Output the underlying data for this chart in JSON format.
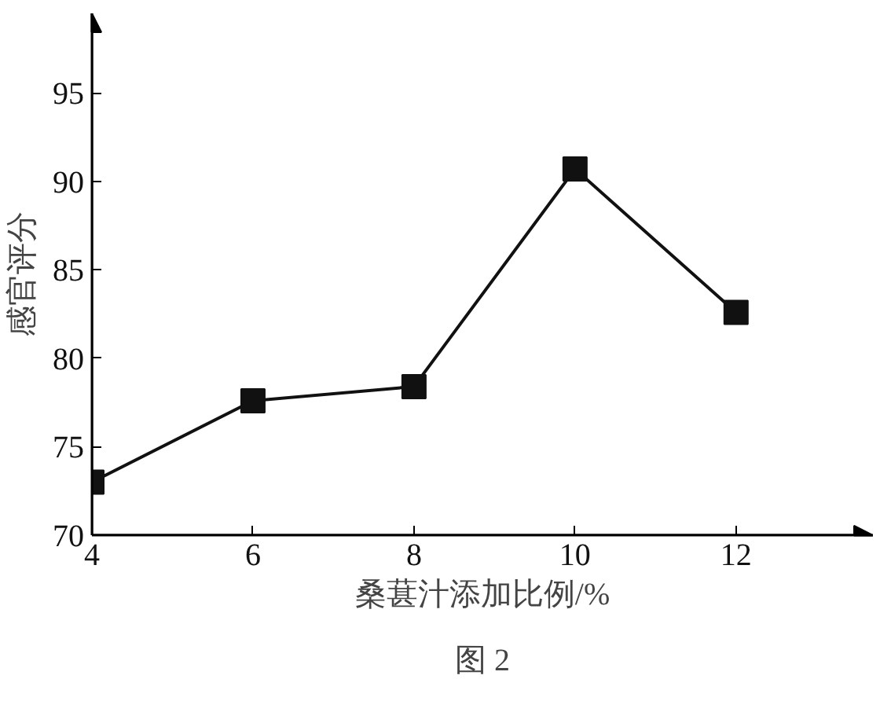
{
  "chart_data": {
    "type": "line",
    "xlabel": "桑葚汁添加比例/%",
    "ylabel": "感官评分",
    "x": [
      4,
      6,
      8,
      10,
      12
    ],
    "series": [
      {
        "color": "#111111",
        "values": [
          73.0,
          77.6,
          78.4,
          90.7,
          82.6
        ]
      }
    ],
    "marker": "square",
    "line_style": "solid",
    "grid": false,
    "xlim": [
      4,
      13.7
    ],
    "ylim": [
      70,
      99.5
    ],
    "xticks": [
      4,
      6,
      8,
      10,
      12
    ],
    "yticks": [
      70,
      75,
      80,
      85,
      90,
      95
    ],
    "annotations": [
      "图 2"
    ]
  }
}
